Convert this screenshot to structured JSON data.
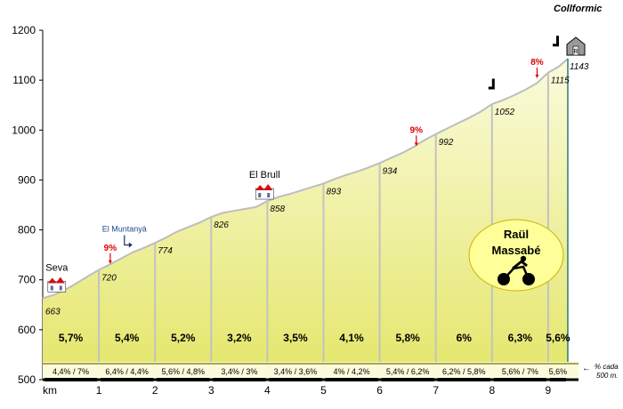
{
  "chart_data": {
    "type": "area",
    "title": "Collformic",
    "xlabel": "km",
    "ylabel": "",
    "ylim": [
      500,
      1200
    ],
    "xlim": [
      0,
      9.35
    ],
    "y_ticks": [
      "1200",
      "1100",
      "1000",
      "900",
      "800",
      "700",
      "600",
      "500"
    ],
    "x_ticks": [
      "1",
      "2",
      "3",
      "4",
      "5",
      "6",
      "7",
      "8",
      "9"
    ],
    "profile": {
      "x": [
        0,
        0.2,
        0.4,
        0.6,
        0.8,
        1,
        1.2,
        1.4,
        1.6,
        1.8,
        2,
        2.2,
        2.4,
        2.6,
        2.8,
        3,
        3.2,
        3.4,
        3.6,
        3.8,
        4,
        4.2,
        4.4,
        4.6,
        4.8,
        5,
        5.2,
        5.4,
        5.6,
        5.8,
        6,
        6.2,
        6.4,
        6.6,
        6.8,
        7,
        7.2,
        7.4,
        7.6,
        7.8,
        8,
        8.2,
        8.4,
        8.6,
        8.8,
        9,
        9.2,
        9.35
      ],
      "y": [
        663,
        670,
        680,
        693,
        707,
        720,
        731,
        743,
        755,
        764,
        774,
        785,
        797,
        806,
        815,
        826,
        834,
        838,
        842,
        846,
        858,
        866,
        872,
        879,
        886,
        893,
        902,
        910,
        917,
        925,
        934,
        944,
        954,
        966,
        980,
        992,
        1003,
        1014,
        1025,
        1037,
        1052,
        1060,
        1070,
        1081,
        1094,
        1115,
        1128,
        1143
      ]
    },
    "km_altitudes": [
      "663",
      "720",
      "774",
      "826",
      "858",
      "893",
      "934",
      "992",
      "1052",
      "1115",
      "1143"
    ],
    "km_altitude_values": [
      663,
      720,
      774,
      826,
      858,
      893,
      934,
      992,
      1052,
      1115,
      1143
    ],
    "segment_gradients": [
      "5,7%",
      "5,4%",
      "5,2%",
      "3,2%",
      "3,5%",
      "4,1%",
      "5,8%",
      "6%",
      "6,3%",
      "5,6%"
    ],
    "sub_gradients": [
      "4,4% / 7%",
      "6,4% / 4,4%",
      "5,6% / 4,8%",
      "3,4% / 3%",
      "3,4% / 3,6%",
      "4% / 4,2%",
      "5,4% / 6,2%",
      "6,2% / 5,8%",
      "5,6% / 7%",
      "5,6%"
    ],
    "places": [
      {
        "name": "Seva",
        "km": 0.25,
        "alt": 672
      },
      {
        "name": "El Brull",
        "km": 3.95,
        "alt": 858
      }
    ],
    "steep_marks": [
      {
        "label": "9%",
        "km": 1.25,
        "alt": 730
      },
      {
        "label": "9%",
        "km": 6.7,
        "alt": 966
      },
      {
        "label": "8%",
        "km": 8.85,
        "alt": 1102
      }
    ],
    "turn_marker": {
      "label": "El Muntanyà",
      "km": 1.55,
      "alt": 752
    },
    "km_note": [
      "% cada",
      "500 m."
    ],
    "colors": {
      "fill_top": "#fbfbdc",
      "fill_bottom": "#e4e66a",
      "line": "#bdbdbd",
      "mark": "#e00000",
      "badge": "#ffff99",
      "end_line": "#2b7a78"
    }
  },
  "author": {
    "line1": "Raül",
    "line2": "Massabé",
    "icon": "cyclist-icon"
  }
}
